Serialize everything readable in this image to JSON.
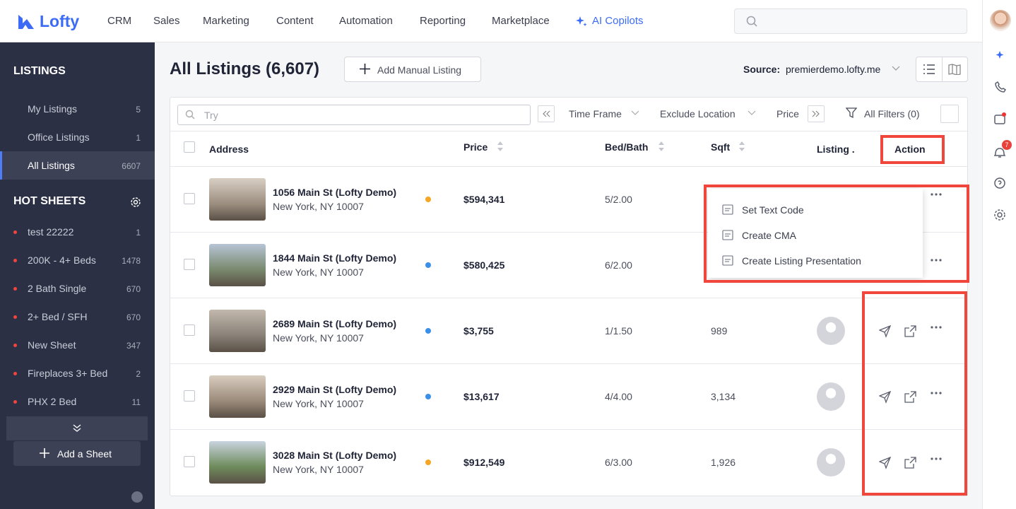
{
  "nav": {
    "logo": "Lofty",
    "items": [
      "CRM",
      "Sales",
      "Marketing",
      "Content",
      "Automation",
      "Reporting",
      "Marketplace"
    ],
    "ai": "AI Copilots",
    "badge": 7
  },
  "sidebar": {
    "listings_title": "LISTINGS",
    "listings": [
      {
        "label": "My Listings",
        "count": 5
      },
      {
        "label": "Office Listings",
        "count": 1
      },
      {
        "label": "All Listings",
        "count": 6607
      }
    ],
    "hot_title": "HOT SHEETS",
    "sheets": [
      {
        "label": "test 22222",
        "count": 1
      },
      {
        "label": "200K - 4+ Beds",
        "count": 1478
      },
      {
        "label": "2 Bath Single",
        "count": 670
      },
      {
        "label": "2+ Bed / SFH",
        "count": 670
      },
      {
        "label": "New Sheet",
        "count": 347
      },
      {
        "label": "Fireplaces 3+ Bed",
        "count": 2
      },
      {
        "label": "PHX 2 Bed",
        "count": 11
      }
    ],
    "add": "Add a Sheet"
  },
  "header": {
    "title": "All Listings (6,607)",
    "add_button": "Add Manual Listing",
    "source_label": "Source:",
    "source_value": "premierdemo.lofty.me"
  },
  "filters": {
    "search": "Try",
    "items": [
      "Time Frame",
      "Exclude Location",
      "Price"
    ],
    "all_filters": "All Filters (0)"
  },
  "table": {
    "columns": [
      "Address",
      "Price",
      "Bed/Bath",
      "Sqft",
      "Listing .",
      "Action"
    ],
    "rows": [
      {
        "address": "1056 Main St (Lofty Demo)",
        "city": "New York, NY 10007",
        "status": "#f5a623",
        "price": "$594,341",
        "bedbath": "5/2.00"
      },
      {
        "address": "1844 Main St (Lofty Demo)",
        "city": "New York, NY 10007",
        "status": "#3b8fe8",
        "price": "$580,425",
        "bedbath": "6/2.00"
      },
      {
        "address": "2689 Main St (Lofty Demo)",
        "city": "New York, NY 10007",
        "status": "#3b8fe8",
        "price": "$3,755",
        "bedbath": "1/1.50",
        "sqft": "989"
      },
      {
        "address": "2929 Main St (Lofty Demo)",
        "city": "New York, NY 10007",
        "status": "#3b8fe8",
        "price": "$13,617",
        "bedbath": "4/4.00",
        "sqft": "3,134"
      },
      {
        "address": "3028 Main St (Lofty Demo)",
        "city": "New York, NY 10007",
        "status": "#f5a623",
        "price": "$912,549",
        "bedbath": "6/3.00",
        "sqft": "1,926"
      }
    ]
  },
  "menu": [
    "Set Text Code",
    "Create CMA",
    "Create Listing Presentation"
  ]
}
